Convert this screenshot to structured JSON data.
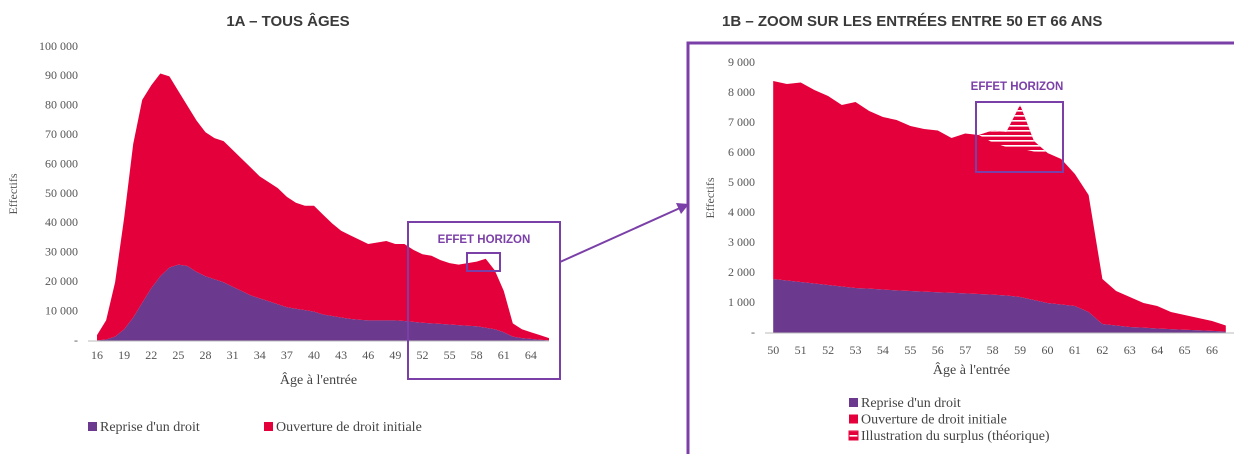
{
  "chart_data": [
    {
      "type": "area",
      "stacked": true,
      "title": "1A – TOUS ÂGES",
      "xlabel": "Âge à l'entrée",
      "ylabel": "Effectifs",
      "annotation": "EFFET HORIZON",
      "x": [
        16,
        17,
        18,
        19,
        20,
        21,
        22,
        23,
        24,
        25,
        26,
        27,
        28,
        29,
        30,
        31,
        32,
        33,
        34,
        35,
        36,
        37,
        38,
        39,
        40,
        41,
        42,
        43,
        44,
        45,
        46,
        47,
        48,
        49,
        50,
        51,
        52,
        53,
        54,
        55,
        56,
        57,
        58,
        59,
        60,
        61,
        62,
        63,
        64,
        65,
        66
      ],
      "xlim": [
        15,
        66
      ],
      "xticks": [
        16,
        19,
        22,
        25,
        28,
        31,
        34,
        37,
        40,
        43,
        46,
        49,
        52,
        55,
        58,
        61,
        64
      ],
      "ylim": [
        0,
        100000
      ],
      "yticks": [
        {
          "value": 0,
          "label": "-"
        },
        {
          "value": 10000,
          "label": "10 000"
        },
        {
          "value": 20000,
          "label": "20 000"
        },
        {
          "value": 30000,
          "label": "30 000"
        },
        {
          "value": 40000,
          "label": "40 000"
        },
        {
          "value": 50000,
          "label": "50 000"
        },
        {
          "value": 60000,
          "label": "60 000"
        },
        {
          "value": 70000,
          "label": "70 000"
        },
        {
          "value": 80000,
          "label": "80 000"
        },
        {
          "value": 90000,
          "label": "90 000"
        },
        {
          "value": 100000,
          "label": "100 000"
        }
      ],
      "legend": "bottom",
      "series": [
        {
          "name": "Reprise d'un droit",
          "color": "#6b3a8e",
          "values": [
            200,
            500,
            1500,
            4000,
            8000,
            13000,
            18000,
            22000,
            25000,
            26000,
            25500,
            23500,
            22000,
            21000,
            20000,
            18500,
            17000,
            15500,
            14500,
            13500,
            12500,
            11500,
            11000,
            10500,
            10000,
            9000,
            8500,
            8000,
            7500,
            7200,
            7000,
            7000,
            7000,
            7000,
            6800,
            6500,
            6200,
            6000,
            5800,
            5600,
            5400,
            5200,
            5000,
            4500,
            4000,
            3000,
            1500,
            1000,
            700,
            400,
            200
          ]
        },
        {
          "name": "Ouverture de droit initiale",
          "color": "#e4003b",
          "values": [
            1800,
            6500,
            18500,
            38000,
            59000,
            69000,
            69000,
            69000,
            65000,
            59000,
            54500,
            51500,
            49000,
            48000,
            48000,
            46500,
            45000,
            43500,
            41500,
            40500,
            39500,
            37500,
            36000,
            35500,
            36000,
            34000,
            31500,
            29500,
            28500,
            27300,
            26000,
            26500,
            27000,
            26000,
            26200,
            24500,
            23300,
            23000,
            21700,
            20900,
            20600,
            21300,
            22000,
            23500,
            20000,
            14000,
            4500,
            3000,
            2300,
            1600,
            800
          ]
        }
      ]
    },
    {
      "type": "area",
      "stacked": true,
      "title": "1B – ZOOM SUR LES ENTRÉES ENTRE 50 ET 66 ANS",
      "xlabel": "Âge à l'entrée",
      "ylabel": "Effectifs",
      "annotation": "EFFET HORIZON",
      "x": [
        50,
        50.5,
        51,
        51.5,
        52,
        52.5,
        53,
        53.5,
        54,
        54.5,
        55,
        55.5,
        56,
        56.5,
        57,
        57.5,
        58,
        58.5,
        59,
        59.5,
        60,
        60.5,
        61,
        61.5,
        62,
        62.5,
        63,
        63.5,
        64,
        64.5,
        65,
        65.5,
        66,
        66.5
      ],
      "xlim": [
        49.7,
        66.8
      ],
      "xticks": [
        50,
        51,
        52,
        53,
        54,
        55,
        56,
        57,
        58,
        59,
        60,
        61,
        62,
        63,
        64,
        65,
        66
      ],
      "ylim": [
        0,
        9000
      ],
      "yticks": [
        {
          "value": 0,
          "label": "-"
        },
        {
          "value": 1000,
          "label": "1 000"
        },
        {
          "value": 2000,
          "label": "2 000"
        },
        {
          "value": 3000,
          "label": "3 000"
        },
        {
          "value": 4000,
          "label": "4 000"
        },
        {
          "value": 5000,
          "label": "5 000"
        },
        {
          "value": 6000,
          "label": "6 000"
        },
        {
          "value": 7000,
          "label": "7 000"
        },
        {
          "value": 8000,
          "label": "8 000"
        },
        {
          "value": 9000,
          "label": "9 000"
        }
      ],
      "legend": "bottom-left",
      "series": [
        {
          "name": "Reprise d'un droit",
          "color": "#6b3a8e",
          "values": [
            1800,
            1750,
            1700,
            1650,
            1600,
            1550,
            1500,
            1480,
            1450,
            1420,
            1400,
            1380,
            1360,
            1340,
            1320,
            1300,
            1280,
            1250,
            1200,
            1100,
            1000,
            950,
            900,
            700,
            300,
            250,
            200,
            180,
            150,
            130,
            110,
            90,
            70,
            50
          ]
        },
        {
          "name": "Ouverture de droit initiale",
          "color": "#e4003b",
          "values": [
            6600,
            6550,
            6650,
            6450,
            6300,
            6050,
            6200,
            5920,
            5750,
            5680,
            5500,
            5420,
            5390,
            5160,
            5330,
            5300,
            5470,
            5450,
            6400,
            5300,
            5000,
            4850,
            4400,
            3900,
            1500,
            1150,
            1000,
            820,
            750,
            570,
            490,
            410,
            330,
            200
          ]
        },
        {
          "name": "Illustration du surplus (théorique)",
          "color": "#e4003b",
          "pattern": "hatch",
          "values": [
            null,
            null,
            null,
            null,
            null,
            null,
            null,
            null,
            null,
            null,
            null,
            null,
            null,
            null,
            null,
            0,
            400,
            500,
            1450,
            350,
            0,
            null,
            null,
            null,
            null,
            null,
            null,
            null,
            null,
            null,
            null,
            null,
            null,
            null
          ]
        }
      ]
    }
  ]
}
